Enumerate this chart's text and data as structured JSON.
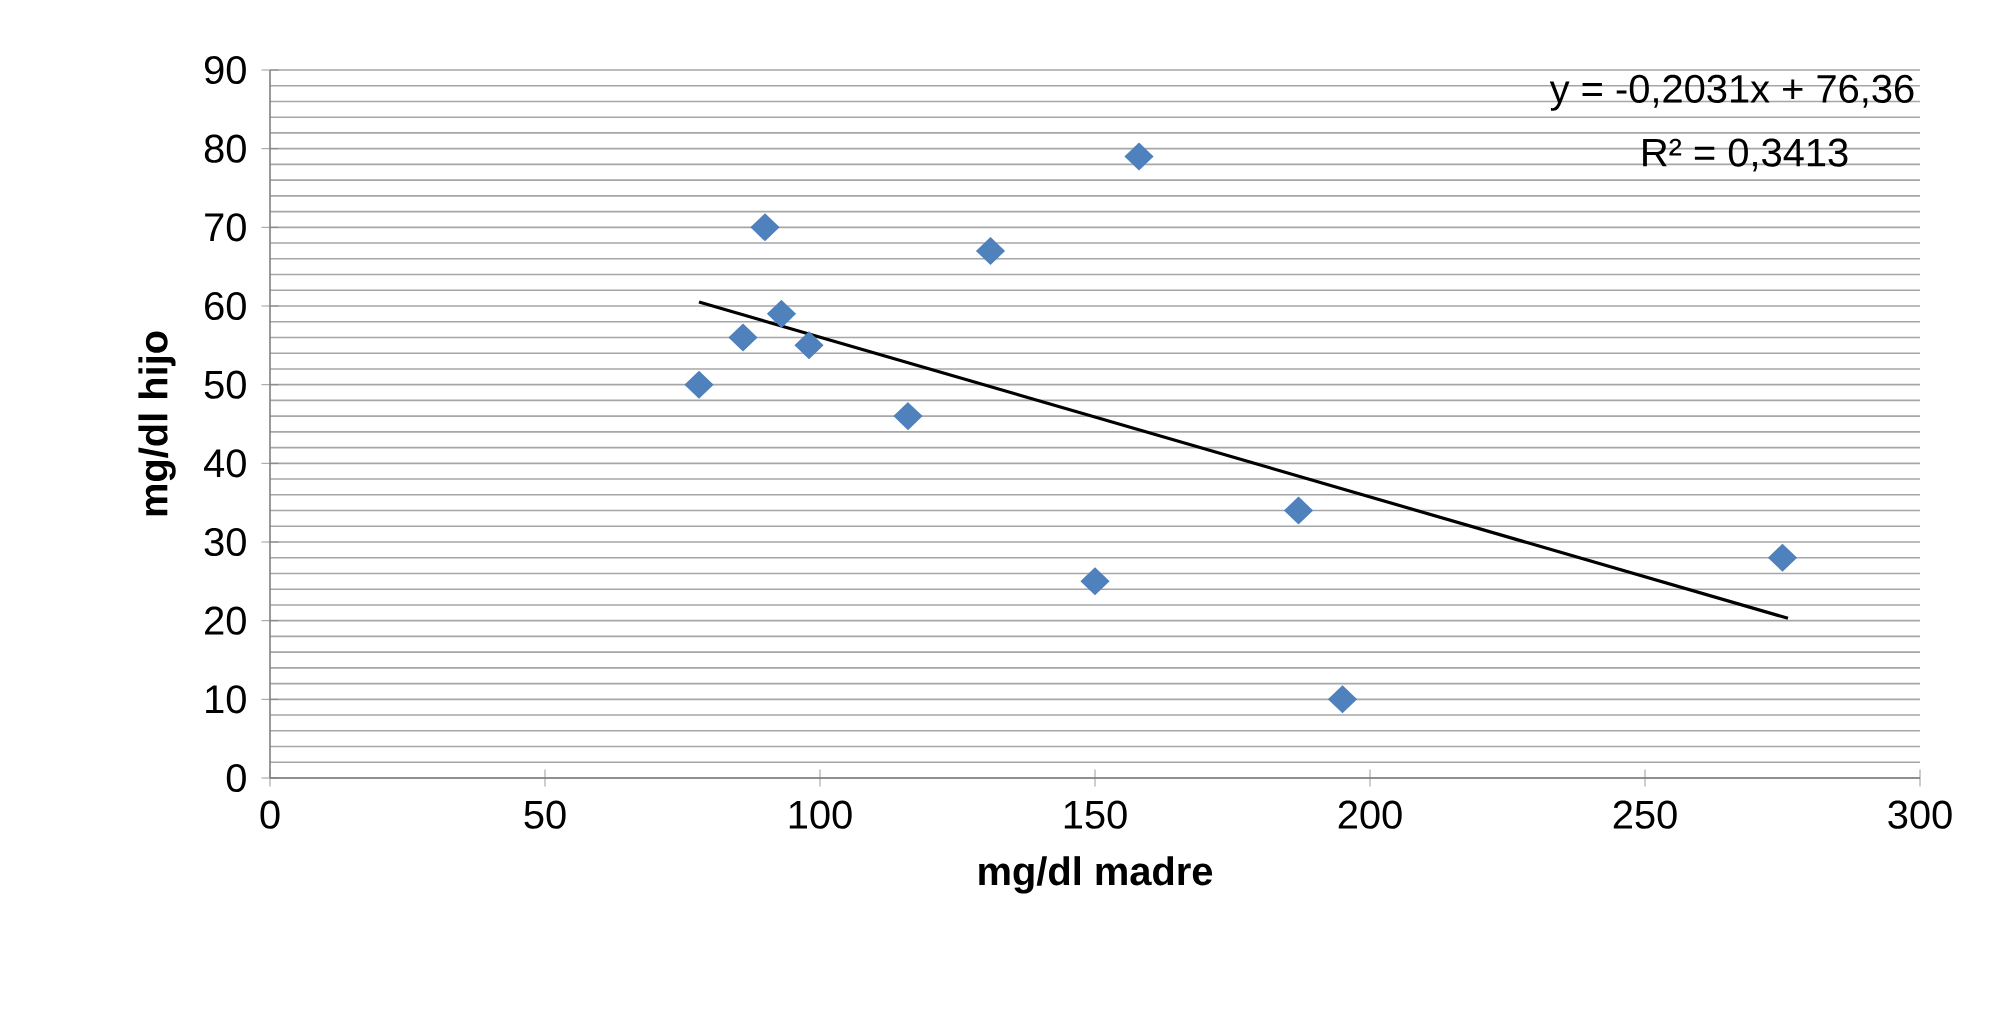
{
  "chart_data": {
    "type": "scatter",
    "xlabel": "mg/dl madre",
    "ylabel": "mg/dl hijo",
    "xlim": [
      0,
      300
    ],
    "ylim": [
      0,
      90
    ],
    "xticks": [
      0,
      50,
      100,
      150,
      200,
      250,
      300
    ],
    "yticks": [
      0,
      10,
      20,
      30,
      40,
      50,
      60,
      70,
      80,
      90
    ],
    "grid": "y",
    "marker": "diamond",
    "series": [
      {
        "color": "#4f81bd",
        "x": [
          78,
          86,
          90,
          93,
          98,
          116,
          131,
          150,
          158,
          187,
          195,
          275
        ],
        "values": [
          50,
          56,
          70,
          59,
          55,
          46,
          67,
          25,
          79,
          34,
          10,
          28
        ]
      },
      {
        "type": "line",
        "color": "#000000",
        "marker": "none",
        "x": [
          78,
          276
        ],
        "values": [
          60.5,
          20.3
        ]
      }
    ],
    "annotations": [
      "y = -0,2031x + 76,36",
      "R² = 0,3413"
    ]
  }
}
